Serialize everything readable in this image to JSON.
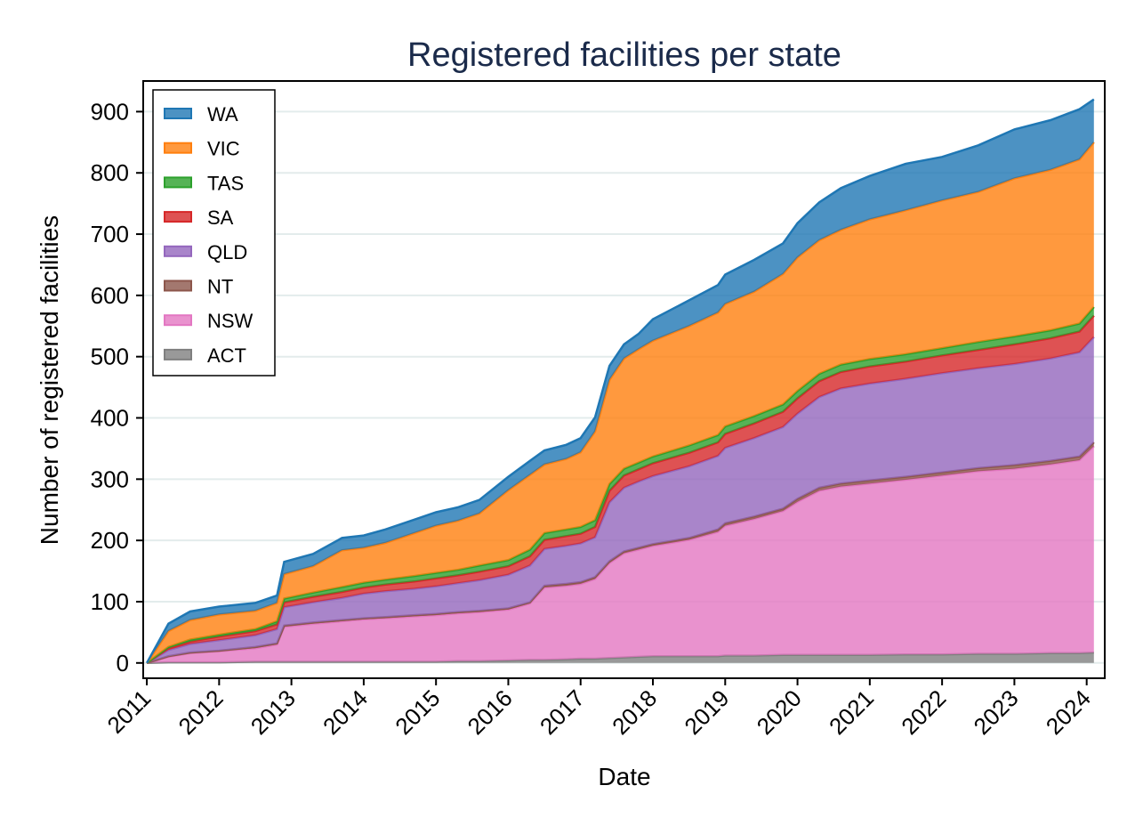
{
  "chart_data": {
    "type": "area",
    "stacked": true,
    "title": "Registered facilities per state",
    "xlabel": "Date",
    "ylabel": "Number of registered facilities",
    "xlim": [
      2010.95,
      2024.25
    ],
    "ylim": [
      -25,
      950
    ],
    "yticks": [
      0,
      100,
      200,
      300,
      400,
      500,
      600,
      700,
      800,
      900
    ],
    "xticks": [
      2011,
      2012,
      2013,
      2014,
      2015,
      2016,
      2017,
      2018,
      2019,
      2020,
      2021,
      2022,
      2023,
      2024
    ],
    "xtick_labels": [
      "2011",
      "2012",
      "2013",
      "2014",
      "2015",
      "2016",
      "2017",
      "2018",
      "2019",
      "2020",
      "2021",
      "2022",
      "2023",
      "2024"
    ],
    "grid": "horizontal",
    "legend_position": "top-left",
    "x": [
      2011.0,
      2011.3,
      2011.6,
      2012.0,
      2012.5,
      2012.8,
      2012.9,
      2013.3,
      2013.7,
      2014.0,
      2014.3,
      2014.7,
      2015.0,
      2015.3,
      2015.6,
      2016.0,
      2016.3,
      2016.5,
      2016.8,
      2017.0,
      2017.2,
      2017.4,
      2017.6,
      2017.8,
      2018.0,
      2018.5,
      2018.9,
      2019.0,
      2019.4,
      2019.8,
      2020.0,
      2020.3,
      2020.6,
      2021.0,
      2021.5,
      2022.0,
      2022.5,
      2023.0,
      2023.5,
      2023.9,
      2024.1
    ],
    "series": [
      {
        "name": "ACT",
        "color": "#7f7f7f",
        "values": [
          0,
          1,
          1,
          1,
          2,
          2,
          2,
          2,
          2,
          2,
          2,
          2,
          2,
          3,
          3,
          4,
          5,
          5,
          6,
          7,
          7,
          8,
          9,
          10,
          11,
          11,
          11,
          12,
          12,
          13,
          13,
          13,
          13,
          13,
          14,
          14,
          15,
          15,
          16,
          16,
          17
        ]
      },
      {
        "name": "NSW",
        "color": "#e377c2",
        "values": [
          0,
          9,
          15,
          18,
          22,
          28,
          57,
          62,
          66,
          69,
          71,
          74,
          76,
          78,
          80,
          83,
          92,
          118,
          120,
          122,
          130,
          155,
          170,
          175,
          180,
          190,
          203,
          212,
          223,
          235,
          250,
          268,
          275,
          280,
          285,
          292,
          298,
          302,
          308,
          315,
          337
        ]
      },
      {
        "name": "NT",
        "color": "#8c564b",
        "values": [
          0,
          1,
          1,
          1,
          2,
          2,
          2,
          2,
          2,
          2,
          2,
          2,
          2,
          2,
          2,
          2,
          2,
          3,
          3,
          3,
          3,
          3,
          3,
          3,
          3,
          3,
          4,
          4,
          4,
          4,
          5,
          5,
          5,
          5,
          5,
          5,
          5,
          6,
          6,
          6,
          6
        ]
      },
      {
        "name": "QLD",
        "color": "#9467bd",
        "values": [
          0,
          10,
          14,
          17,
          19,
          23,
          30,
          33,
          36,
          40,
          42,
          43,
          45,
          47,
          50,
          55,
          60,
          60,
          62,
          63,
          65,
          96,
          104,
          108,
          111,
          117,
          120,
          123,
          128,
          133,
          139,
          148,
          155,
          158,
          160,
          162,
          163,
          165,
          167,
          170,
          172
        ]
      },
      {
        "name": "SA",
        "color": "#d62728",
        "values": [
          0,
          3,
          4,
          6,
          7,
          8,
          8,
          9,
          10,
          10,
          11,
          12,
          13,
          13,
          14,
          14,
          15,
          15,
          16,
          16,
          17,
          19,
          20,
          20,
          21,
          22,
          22,
          23,
          24,
          25,
          25,
          26,
          27,
          28,
          28,
          29,
          30,
          32,
          33,
          34,
          35
        ]
      },
      {
        "name": "TAS",
        "color": "#2ca02c",
        "values": [
          0,
          2,
          3,
          3,
          3,
          5,
          6,
          7,
          8,
          8,
          8,
          9,
          9,
          9,
          10,
          10,
          11,
          11,
          11,
          11,
          11,
          11,
          11,
          11,
          11,
          12,
          12,
          12,
          12,
          12,
          12,
          12,
          12,
          12,
          12,
          12,
          13,
          13,
          13,
          13,
          14
        ]
      },
      {
        "name": "VIC",
        "color": "#ff7f0e",
        "values": [
          0,
          26,
          32,
          33,
          30,
          30,
          40,
          43,
          60,
          57,
          60,
          70,
          77,
          80,
          85,
          114,
          122,
          112,
          115,
          122,
          145,
          170,
          180,
          185,
          189,
          195,
          200,
          200,
          203,
          213,
          218,
          218,
          220,
          228,
          235,
          241,
          245,
          258,
          262,
          268,
          269
        ]
      },
      {
        "name": "WA",
        "color": "#1f77b4",
        "values": [
          0,
          12,
          14,
          13,
          13,
          12,
          20,
          20,
          20,
          20,
          22,
          22,
          22,
          22,
          22,
          22,
          23,
          23,
          23,
          23,
          23,
          23,
          23,
          25,
          35,
          42,
          45,
          48,
          52,
          50,
          56,
          62,
          68,
          71,
          76,
          71,
          76,
          80,
          81,
          82,
          70
        ]
      }
    ],
    "legend_order": [
      "WA",
      "VIC",
      "TAS",
      "SA",
      "QLD",
      "NT",
      "NSW",
      "ACT"
    ]
  }
}
